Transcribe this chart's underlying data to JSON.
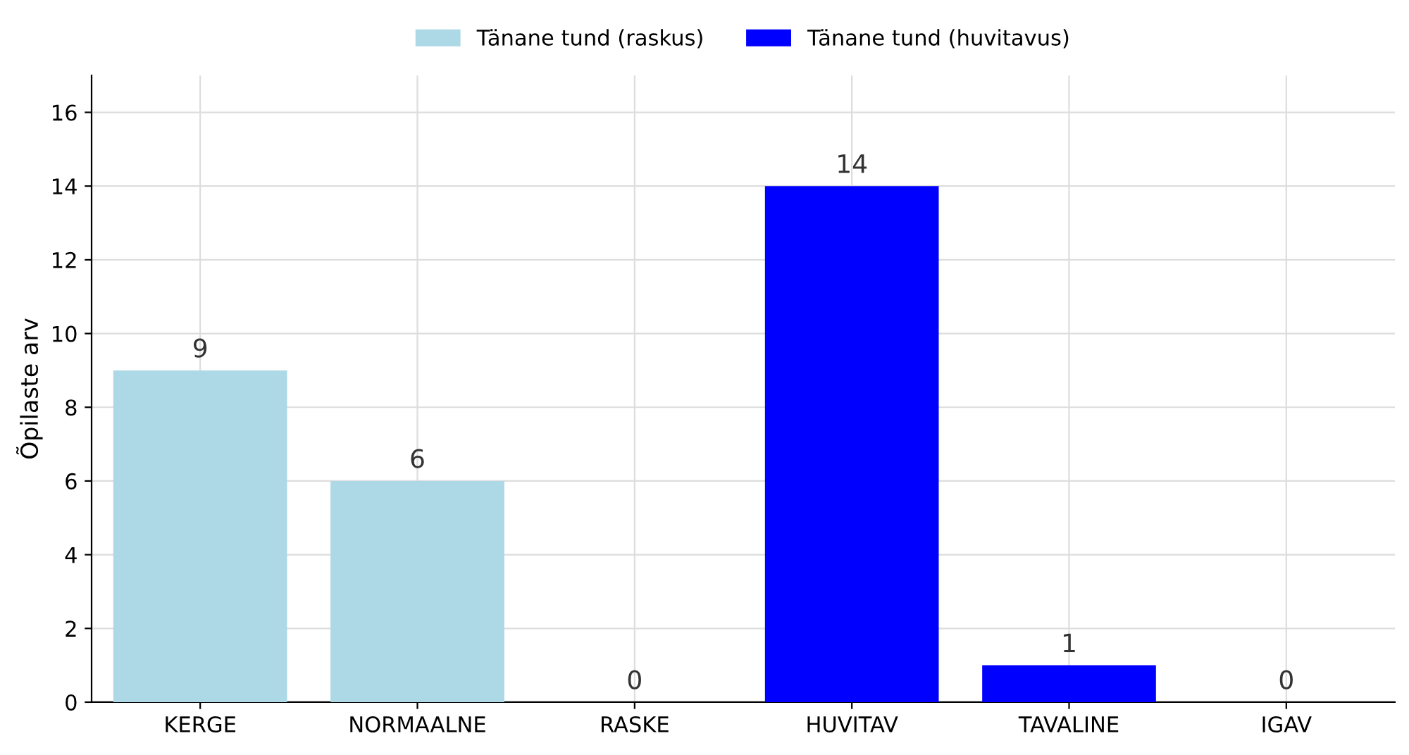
{
  "chart_data": {
    "type": "bar",
    "ylabel": "Õpilaste arv",
    "categories": [
      "KERGE",
      "NORMAALNE",
      "RASKE",
      "HUVITAV",
      "TAVALINE",
      "IGAV"
    ],
    "series": [
      {
        "name": "Tänane tund (raskus)",
        "color": "#add8e6",
        "values": [
          9,
          6,
          0,
          null,
          null,
          null
        ]
      },
      {
        "name": "Tänane tund (huvitavus)",
        "color": "#0000ff",
        "values": [
          null,
          null,
          null,
          14,
          1,
          0
        ]
      }
    ],
    "ylim": [
      0,
      17
    ],
    "yticks": [
      0,
      2,
      4,
      6,
      8,
      10,
      12,
      14,
      16
    ],
    "grid": true,
    "legend": "top",
    "data_labels": true
  }
}
